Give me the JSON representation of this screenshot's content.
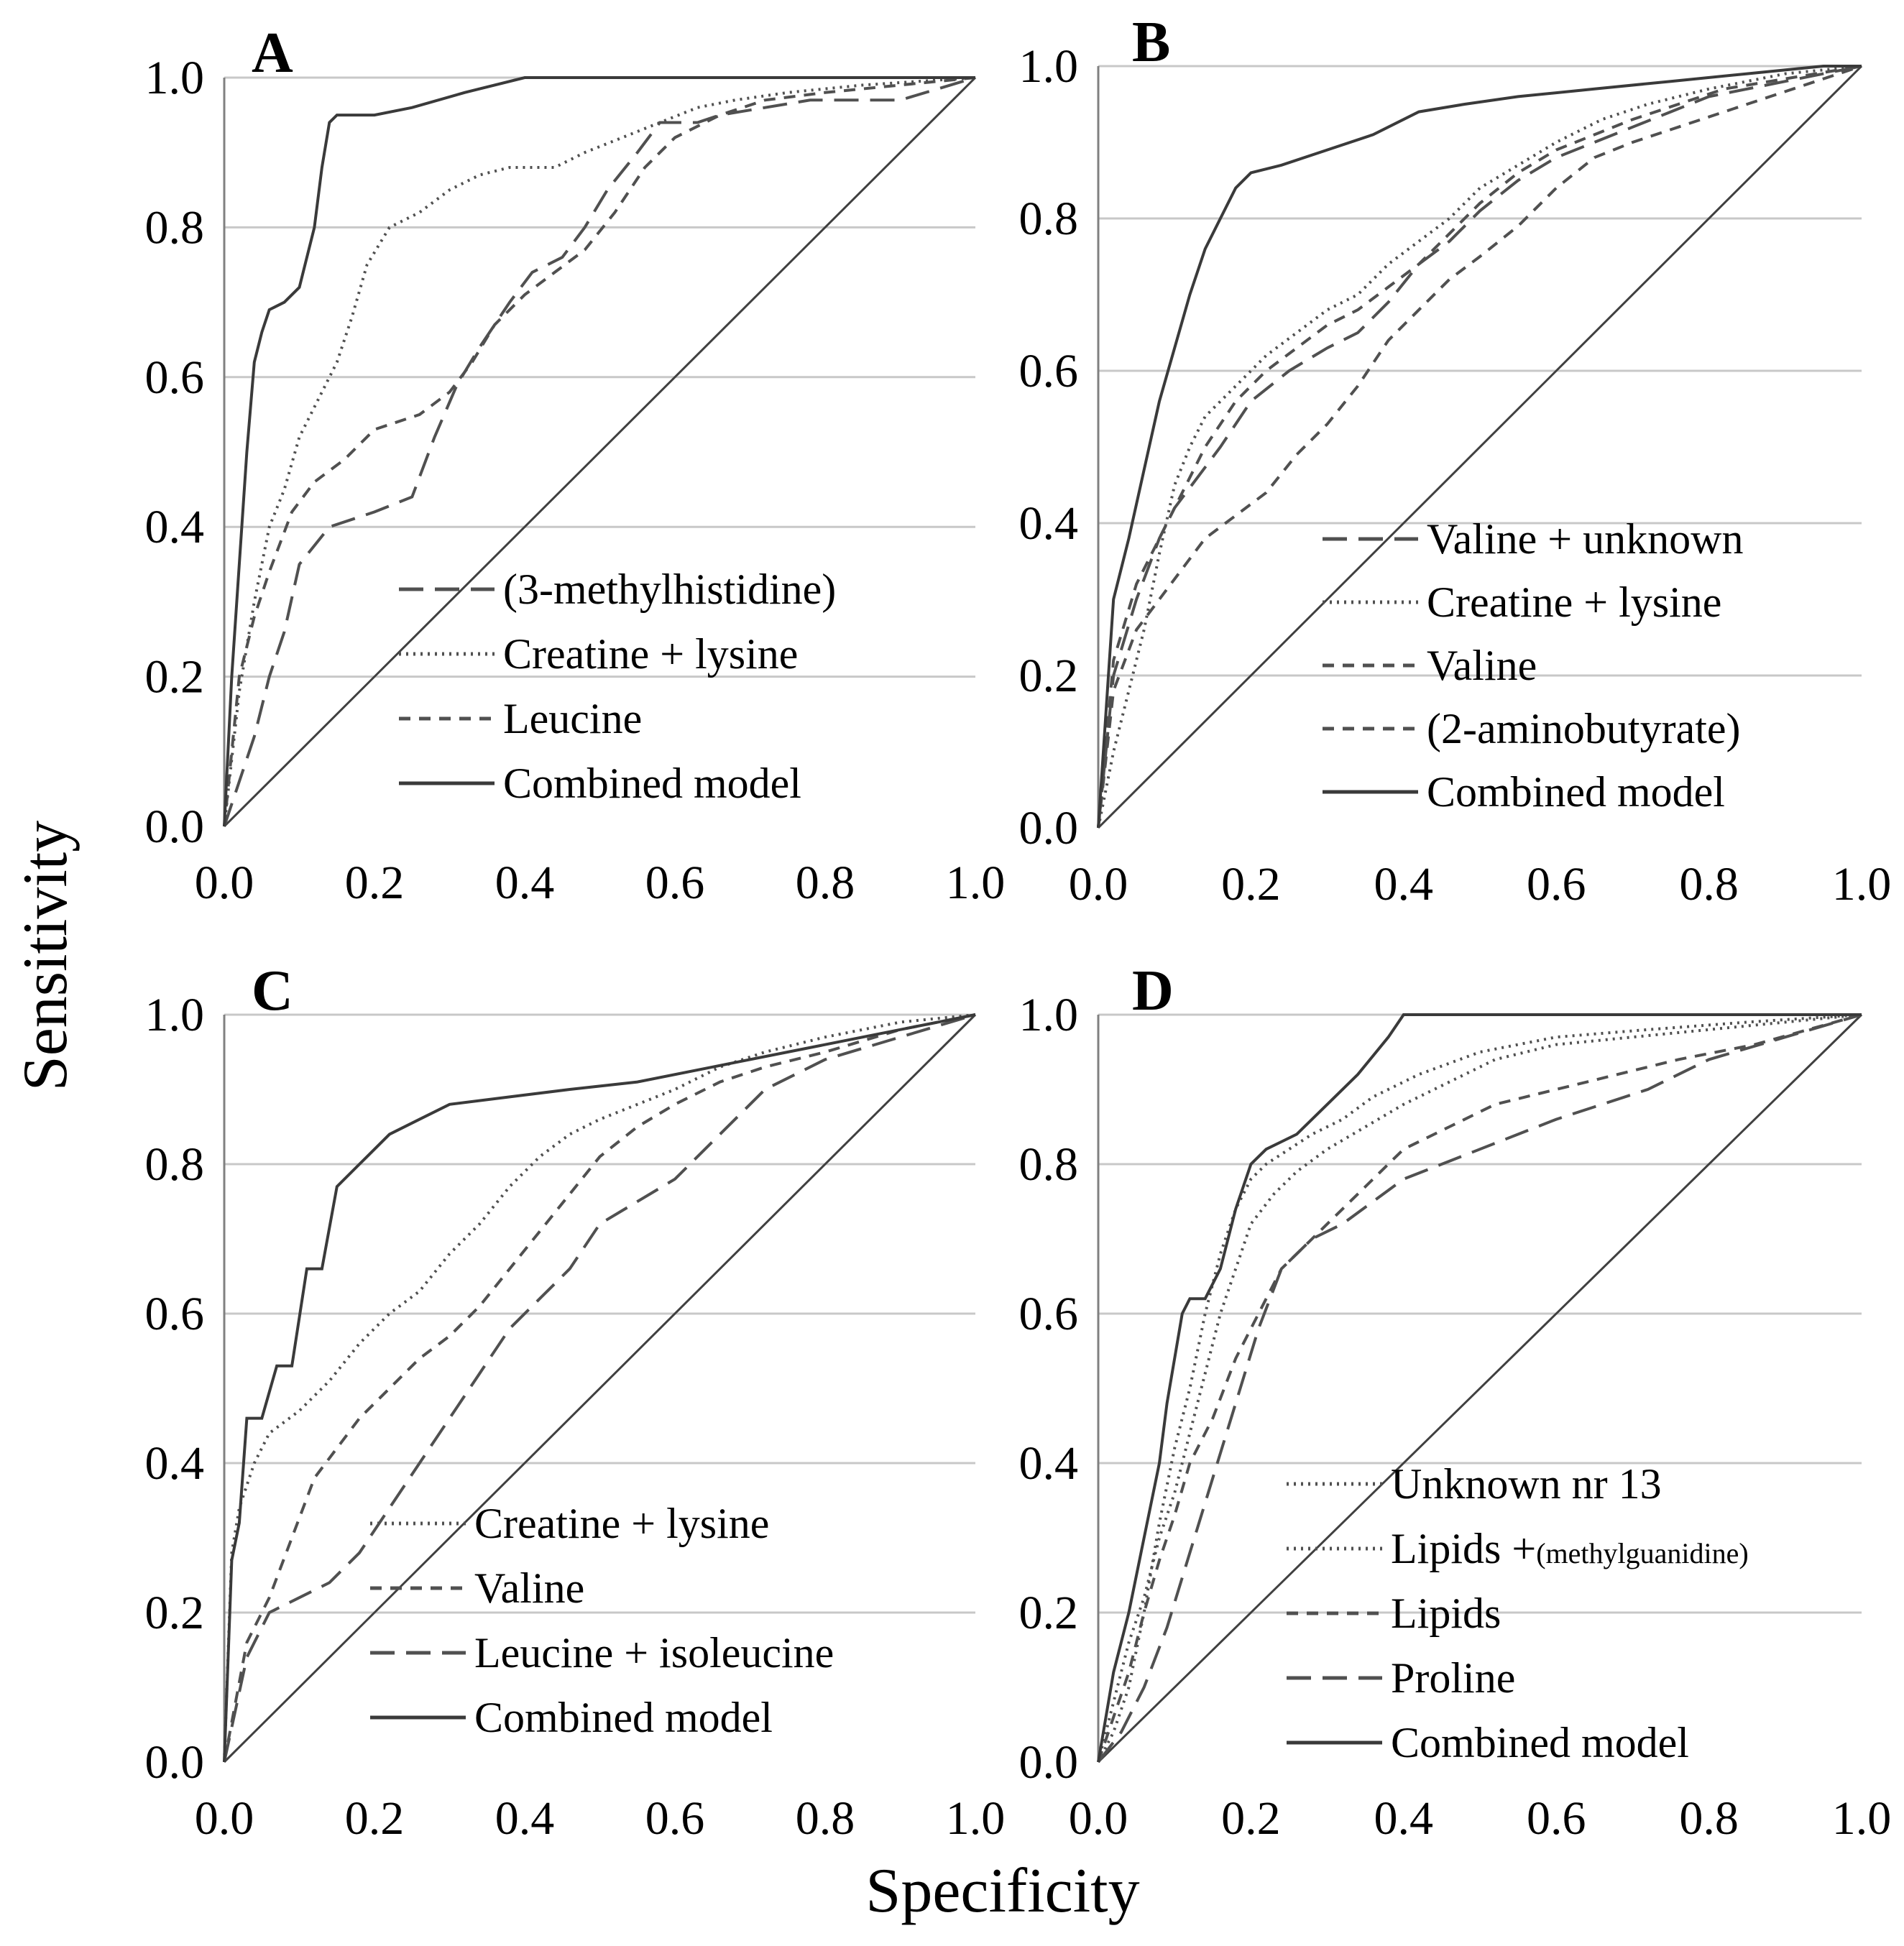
{
  "chart_data": {
    "type": "line",
    "xlabel": "Specificity",
    "ylabel": "Sensitivity",
    "x_ticks": [
      "0.0",
      "0.2",
      "0.4",
      "0.6",
      "0.8",
      "1.0"
    ],
    "y_ticks": [
      "0.0",
      "0.2",
      "0.4",
      "0.6",
      "0.8",
      "1.0"
    ],
    "xlim": [
      0,
      1
    ],
    "ylim": [
      0,
      1
    ],
    "grid": "horizontal",
    "colors": {
      "line": "#505050",
      "grid": "#c8c8c8",
      "diagonal": "#404040"
    },
    "panels": [
      {
        "label": "A",
        "series": [
          {
            "name": "(3-methylhistidine)",
            "style": "longdash",
            "x": [
              0,
              0.02,
              0.04,
              0.06,
              0.08,
              0.1,
              0.14,
              0.2,
              0.25,
              0.28,
              0.31,
              0.34,
              0.38,
              0.41,
              0.45,
              0.48,
              0.51,
              0.55,
              0.58,
              0.63,
              0.66,
              0.72,
              0.78,
              0.84,
              0.9,
              1
            ],
            "y": [
              0,
              0.06,
              0.12,
              0.2,
              0.26,
              0.35,
              0.4,
              0.42,
              0.44,
              0.52,
              0.59,
              0.64,
              0.7,
              0.74,
              0.76,
              0.8,
              0.85,
              0.9,
              0.94,
              0.94,
              0.95,
              0.96,
              0.97,
              0.97,
              0.97,
              1
            ]
          },
          {
            "name": "Creatine + lysine",
            "style": "dotted",
            "x": [
              0,
              0.02,
              0.04,
              0.06,
              0.08,
              0.1,
              0.12,
              0.15,
              0.17,
              0.19,
              0.22,
              0.26,
              0.3,
              0.34,
              0.38,
              0.44,
              0.48,
              0.53,
              0.58,
              0.63,
              0.68,
              0.75,
              0.85,
              1
            ],
            "y": [
              0,
              0.18,
              0.3,
              0.4,
              0.45,
              0.52,
              0.56,
              0.62,
              0.68,
              0.75,
              0.8,
              0.82,
              0.85,
              0.87,
              0.88,
              0.88,
              0.9,
              0.92,
              0.94,
              0.96,
              0.97,
              0.98,
              0.99,
              1
            ]
          },
          {
            "name": "Leucine",
            "style": "dashed",
            "x": [
              0,
              0.02,
              0.04,
              0.06,
              0.09,
              0.12,
              0.16,
              0.2,
              0.26,
              0.3,
              0.33,
              0.36,
              0.4,
              0.44,
              0.48,
              0.52,
              0.56,
              0.6,
              0.66,
              0.72,
              0.8,
              0.9,
              1
            ],
            "y": [
              0,
              0.2,
              0.28,
              0.34,
              0.42,
              0.46,
              0.49,
              0.53,
              0.55,
              0.58,
              0.62,
              0.67,
              0.71,
              0.74,
              0.77,
              0.82,
              0.88,
              0.92,
              0.95,
              0.97,
              0.98,
              0.99,
              1
            ]
          },
          {
            "name": "Combined model",
            "style": "solid",
            "x": [
              0,
              0.01,
              0.02,
              0.03,
              0.04,
              0.05,
              0.06,
              0.08,
              0.1,
              0.12,
              0.13,
              0.14,
              0.15,
              0.2,
              0.25,
              0.32,
              0.4,
              0.48,
              0.6,
              0.75,
              0.9,
              1
            ],
            "y": [
              0,
              0.2,
              0.35,
              0.5,
              0.62,
              0.66,
              0.69,
              0.7,
              0.72,
              0.8,
              0.88,
              0.94,
              0.95,
              0.95,
              0.96,
              0.98,
              1,
              1,
              1,
              1,
              1,
              1
            ]
          }
        ]
      },
      {
        "label": "B",
        "series": [
          {
            "name": "Valine + unknown",
            "style": "longdash",
            "x": [
              0,
              0.02,
              0.05,
              0.08,
              0.1,
              0.13,
              0.16,
              0.2,
              0.25,
              0.3,
              0.34,
              0.38,
              0.42,
              0.46,
              0.5,
              0.55,
              0.6,
              0.65,
              0.7,
              0.75,
              0.8,
              0.85,
              0.9,
              0.95,
              1
            ],
            "y": [
              0,
              0.2,
              0.3,
              0.38,
              0.42,
              0.46,
              0.5,
              0.56,
              0.6,
              0.63,
              0.65,
              0.69,
              0.74,
              0.77,
              0.81,
              0.85,
              0.88,
              0.9,
              0.92,
              0.94,
              0.96,
              0.97,
              0.98,
              0.99,
              1
            ]
          },
          {
            "name": "Creatine + lysine",
            "style": "dotted",
            "x": [
              0,
              0.02,
              0.04,
              0.06,
              0.08,
              0.1,
              0.12,
              0.14,
              0.18,
              0.22,
              0.26,
              0.3,
              0.34,
              0.38,
              0.42,
              0.46,
              0.5,
              0.55,
              0.6,
              0.66,
              0.72,
              0.8,
              0.9,
              1
            ],
            "y": [
              0,
              0.1,
              0.18,
              0.26,
              0.36,
              0.45,
              0.5,
              0.54,
              0.58,
              0.62,
              0.65,
              0.68,
              0.7,
              0.74,
              0.77,
              0.8,
              0.84,
              0.87,
              0.9,
              0.93,
              0.95,
              0.97,
              0.99,
              1
            ]
          },
          {
            "name": "Valine",
            "style": "dashed",
            "x": [
              0,
              0.02,
              0.05,
              0.08,
              0.11,
              0.14,
              0.18,
              0.22,
              0.26,
              0.3,
              0.34,
              0.38,
              0.42,
              0.46,
              0.5,
              0.55,
              0.6,
              0.65,
              0.7,
              0.76,
              0.82,
              0.88,
              0.94,
              1
            ],
            "y": [
              0,
              0.22,
              0.32,
              0.38,
              0.44,
              0.5,
              0.56,
              0.6,
              0.63,
              0.66,
              0.68,
              0.71,
              0.74,
              0.78,
              0.82,
              0.86,
              0.89,
              0.91,
              0.93,
              0.95,
              0.97,
              0.98,
              0.99,
              1
            ]
          },
          {
            "name": "(2-aminobutyrate)",
            "style": "dashed",
            "x": [
              0,
              0.02,
              0.05,
              0.08,
              0.11,
              0.14,
              0.18,
              0.22,
              0.26,
              0.3,
              0.34,
              0.38,
              0.42,
              0.46,
              0.5,
              0.55,
              0.6,
              0.65,
              0.7,
              0.76,
              0.82,
              0.88,
              0.94,
              1
            ],
            "y": [
              0,
              0.18,
              0.26,
              0.3,
              0.34,
              0.38,
              0.41,
              0.44,
              0.49,
              0.53,
              0.58,
              0.64,
              0.68,
              0.72,
              0.75,
              0.79,
              0.84,
              0.88,
              0.9,
              0.92,
              0.94,
              0.96,
              0.98,
              1
            ]
          },
          {
            "name": "Combined model",
            "style": "solid",
            "x": [
              0,
              0.02,
              0.04,
              0.06,
              0.08,
              0.1,
              0.12,
              0.14,
              0.16,
              0.18,
              0.2,
              0.24,
              0.3,
              0.36,
              0.42,
              0.48,
              0.55,
              0.65,
              0.75,
              0.85,
              0.95,
              1
            ],
            "y": [
              0,
              0.3,
              0.38,
              0.47,
              0.56,
              0.63,
              0.7,
              0.76,
              0.8,
              0.84,
              0.86,
              0.87,
              0.89,
              0.91,
              0.94,
              0.95,
              0.96,
              0.97,
              0.98,
              0.99,
              1,
              1
            ]
          }
        ]
      },
      {
        "label": "C",
        "series": [
          {
            "name": "Creatine + lysine",
            "style": "dotted",
            "x": [
              0,
              0.01,
              0.02,
              0.04,
              0.06,
              0.1,
              0.14,
              0.18,
              0.22,
              0.26,
              0.3,
              0.34,
              0.38,
              0.42,
              0.46,
              0.5,
              0.55,
              0.6,
              0.66,
              0.72,
              0.8,
              0.9,
              1
            ],
            "y": [
              0,
              0.28,
              0.34,
              0.4,
              0.44,
              0.47,
              0.51,
              0.56,
              0.6,
              0.63,
              0.68,
              0.72,
              0.77,
              0.81,
              0.84,
              0.86,
              0.88,
              0.9,
              0.93,
              0.95,
              0.97,
              0.99,
              1
            ]
          },
          {
            "name": "Valine",
            "style": "dashed",
            "x": [
              0,
              0.03,
              0.06,
              0.09,
              0.12,
              0.15,
              0.18,
              0.22,
              0.26,
              0.3,
              0.34,
              0.38,
              0.42,
              0.46,
              0.5,
              0.55,
              0.6,
              0.66,
              0.72,
              0.8,
              0.9,
              1
            ],
            "y": [
              0,
              0.16,
              0.22,
              0.3,
              0.38,
              0.42,
              0.46,
              0.5,
              0.54,
              0.57,
              0.61,
              0.66,
              0.71,
              0.76,
              0.81,
              0.85,
              0.88,
              0.91,
              0.93,
              0.95,
              0.98,
              1
            ]
          },
          {
            "name": "Leucine + isoleucine",
            "style": "longdash",
            "x": [
              0,
              0.03,
              0.06,
              0.1,
              0.14,
              0.18,
              0.22,
              0.26,
              0.3,
              0.34,
              0.38,
              0.42,
              0.46,
              0.5,
              0.55,
              0.6,
              0.66,
              0.72,
              0.8,
              0.9,
              1
            ],
            "y": [
              0,
              0.14,
              0.2,
              0.22,
              0.24,
              0.28,
              0.34,
              0.4,
              0.46,
              0.52,
              0.58,
              0.62,
              0.66,
              0.72,
              0.75,
              0.78,
              0.84,
              0.9,
              0.94,
              0.97,
              1
            ]
          },
          {
            "name": "Combined model",
            "style": "solid",
            "x": [
              0,
              0.01,
              0.02,
              0.03,
              0.05,
              0.07,
              0.09,
              0.11,
              0.13,
              0.15,
              0.18,
              0.22,
              0.26,
              0.3,
              0.38,
              0.46,
              0.55,
              0.65,
              0.75,
              0.85,
              0.95,
              1
            ],
            "y": [
              0,
              0.27,
              0.32,
              0.46,
              0.46,
              0.53,
              0.53,
              0.66,
              0.66,
              0.77,
              0.8,
              0.84,
              0.86,
              0.88,
              0.89,
              0.9,
              0.91,
              0.93,
              0.95,
              0.97,
              0.99,
              1
            ]
          }
        ]
      },
      {
        "label": "D",
        "series": [
          {
            "name": "Unknown nr 13",
            "style": "dotted",
            "x": [
              0,
              0.02,
              0.04,
              0.06,
              0.08,
              0.1,
              0.12,
              0.14,
              0.16,
              0.18,
              0.2,
              0.22,
              0.25,
              0.28,
              0.32,
              0.36,
              0.42,
              0.5,
              0.6,
              0.72,
              0.85,
              1
            ],
            "y": [
              0,
              0.04,
              0.1,
              0.2,
              0.32,
              0.42,
              0.5,
              0.6,
              0.68,
              0.74,
              0.78,
              0.8,
              0.82,
              0.84,
              0.86,
              0.89,
              0.92,
              0.95,
              0.97,
              0.98,
              0.99,
              1
            ]
          },
          {
            "name": "Lipids +(methylguanidine)",
            "style": "dotted",
            "x": [
              0,
              0.02,
              0.04,
              0.06,
              0.08,
              0.1,
              0.12,
              0.14,
              0.16,
              0.18,
              0.2,
              0.23,
              0.26,
              0.3,
              0.35,
              0.4,
              0.46,
              0.52,
              0.6,
              0.7,
              0.8,
              0.9,
              1
            ],
            "y": [
              0,
              0.08,
              0.16,
              0.22,
              0.3,
              0.36,
              0.44,
              0.52,
              0.6,
              0.66,
              0.72,
              0.76,
              0.79,
              0.82,
              0.85,
              0.88,
              0.91,
              0.94,
              0.96,
              0.97,
              0.98,
              0.99,
              1
            ]
          },
          {
            "name": "Lipids",
            "style": "dashed",
            "x": [
              0,
              0.02,
              0.04,
              0.06,
              0.08,
              0.1,
              0.12,
              0.15,
              0.18,
              0.21,
              0.24,
              0.28,
              0.32,
              0.36,
              0.4,
              0.46,
              0.52,
              0.6,
              0.68,
              0.76,
              0.86,
              1
            ],
            "y": [
              0,
              0.06,
              0.12,
              0.2,
              0.27,
              0.33,
              0.4,
              0.46,
              0.54,
              0.6,
              0.66,
              0.7,
              0.74,
              0.78,
              0.82,
              0.85,
              0.88,
              0.9,
              0.92,
              0.94,
              0.96,
              1
            ]
          },
          {
            "name": "Proline",
            "style": "longdash",
            "x": [
              0,
              0.03,
              0.06,
              0.09,
              0.12,
              0.15,
              0.18,
              0.21,
              0.24,
              0.28,
              0.32,
              0.36,
              0.4,
              0.45,
              0.5,
              0.55,
              0.6,
              0.66,
              0.72,
              0.8,
              0.9,
              1
            ],
            "y": [
              0,
              0.04,
              0.1,
              0.18,
              0.28,
              0.38,
              0.48,
              0.58,
              0.66,
              0.7,
              0.72,
              0.75,
              0.78,
              0.8,
              0.82,
              0.84,
              0.86,
              0.88,
              0.9,
              0.94,
              0.97,
              1
            ]
          },
          {
            "name": "Combined model",
            "style": "solid",
            "x": [
              0,
              0.02,
              0.04,
              0.06,
              0.08,
              0.09,
              0.1,
              0.11,
              0.12,
              0.14,
              0.16,
              0.18,
              0.2,
              0.22,
              0.26,
              0.3,
              0.34,
              0.38,
              0.4,
              0.5,
              0.7,
              1
            ],
            "y": [
              0,
              0.12,
              0.2,
              0.3,
              0.4,
              0.48,
              0.54,
              0.6,
              0.62,
              0.62,
              0.66,
              0.74,
              0.8,
              0.82,
              0.84,
              0.88,
              0.92,
              0.97,
              1,
              1,
              1,
              1
            ]
          }
        ]
      }
    ]
  }
}
